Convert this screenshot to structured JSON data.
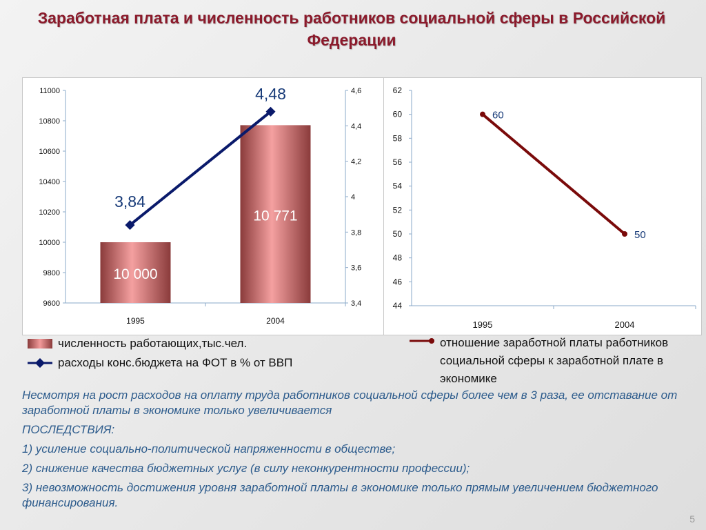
{
  "title": "Заработная плата и численность работников социальной сферы в Российской Федерации",
  "colors": {
    "title": "#8b1a2b",
    "bar": "#e07070",
    "line_left": "#0a1a6b",
    "line_right": "#7a0a0a",
    "notes": "#2c5b8c"
  },
  "chart_data": [
    {
      "type": "bar",
      "categories": [
        "1995",
        "2004"
      ],
      "series": [
        {
          "name": "численность работающих,тыс.чел.",
          "axis": "left",
          "values": [
            10000,
            10771
          ],
          "labels": [
            "10 000",
            "10 771"
          ]
        },
        {
          "name": "расходы конс.бюджета на ФОТ в % от ВВП",
          "type": "line",
          "axis": "right",
          "values": [
            3.84,
            4.48
          ],
          "labels": [
            "3,84",
            "4,48"
          ]
        }
      ],
      "ylim_left": [
        9600,
        11000
      ],
      "yticks_left": [
        "9600",
        "9800",
        "10000",
        "10200",
        "10400",
        "10600",
        "10800",
        "11000"
      ],
      "ylim_right": [
        3.4,
        4.6
      ],
      "yticks_right": [
        "3,4",
        "3,6",
        "3,8",
        "4",
        "4,2",
        "4,4",
        "4,6"
      ],
      "legend": "bottom"
    },
    {
      "type": "line",
      "categories": [
        "1995",
        "2004"
      ],
      "series": [
        {
          "name": "отношение заработной платы работников социальной сферы к заработной плате в экономике",
          "values": [
            60,
            50
          ],
          "labels": [
            "60",
            "50"
          ]
        }
      ],
      "ylim": [
        44,
        62
      ],
      "yticks": [
        "44",
        "46",
        "48",
        "50",
        "52",
        "54",
        "56",
        "58",
        "60",
        "62"
      ],
      "legend": "bottom"
    }
  ],
  "legend_left": {
    "bar_label": "численность работающих,тыс.чел.",
    "line_label": "расходы конс.бюджета на ФОТ в % от ВВП"
  },
  "legend_right": {
    "line_label": "отношение заработной платы работников социальной сферы к заработной плате в экономике"
  },
  "notes": [
    "Несмотря на рост расходов на оплату труда работников социальной сферы более чем в 3 раза, ее отставание от заработной платы в экономике только увеличивается",
    "ПОСЛЕДСТВИЯ:",
    "1) усиление социально-политической напряженности в обществе;",
    "2) снижение качества бюджетных услуг (в силу неконкурентности профессии);",
    "3) невозможность достижения уровня заработной платы в экономике только прямым увеличением бюджетного  финансирования."
  ],
  "page_number": "5"
}
